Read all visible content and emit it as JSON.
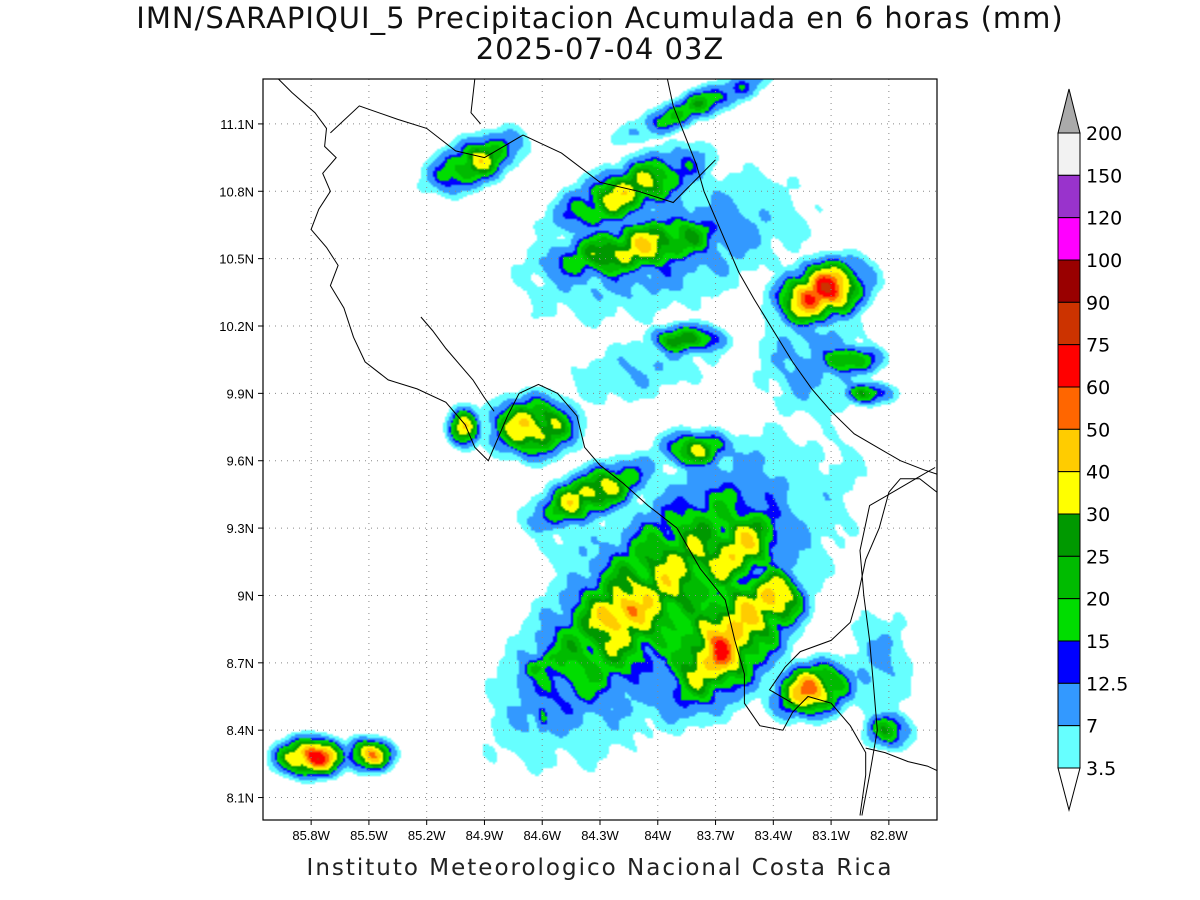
{
  "title": {
    "line1": "IMN/SARAPIQUI_5 Precipitacion Acumulada en 6 horas (mm)",
    "line2": "2025-07-04 03Z"
  },
  "footer": "Instituto Meteorologico Nacional Costa Rica",
  "map": {
    "lon_range": [
      -86.05,
      -82.55
    ],
    "lat_range": [
      8.0,
      11.3
    ],
    "lat_ticks": [
      {
        "value": 11.1,
        "label": "11.1N"
      },
      {
        "value": 10.8,
        "label": "10.8N"
      },
      {
        "value": 10.5,
        "label": "10.5N"
      },
      {
        "value": 10.2,
        "label": "10.2N"
      },
      {
        "value": 9.9,
        "label": "9.9N"
      },
      {
        "value": 9.6,
        "label": "9.6N"
      },
      {
        "value": 9.3,
        "label": "9.3N"
      },
      {
        "value": 9.0,
        "label": "9N"
      },
      {
        "value": 8.7,
        "label": "8.7N"
      },
      {
        "value": 8.4,
        "label": "8.4N"
      },
      {
        "value": 8.1,
        "label": "8.1N"
      }
    ],
    "lon_ticks": [
      {
        "value": -85.8,
        "label": "85.8W"
      },
      {
        "value": -85.5,
        "label": "85.5W"
      },
      {
        "value": -85.2,
        "label": "85.2W"
      },
      {
        "value": -84.9,
        "label": "84.9W"
      },
      {
        "value": -84.6,
        "label": "84.6W"
      },
      {
        "value": -84.3,
        "label": "84.3W"
      },
      {
        "value": -84.0,
        "label": "84W"
      },
      {
        "value": -83.7,
        "label": "83.7W"
      },
      {
        "value": -83.4,
        "label": "83.4W"
      },
      {
        "value": -83.1,
        "label": "83.1W"
      },
      {
        "value": -82.8,
        "label": "82.8W"
      }
    ],
    "grid": "dotted",
    "coastlines": [
      [
        [
          -85.97,
          11.3
        ],
        [
          -85.9,
          11.24
        ],
        [
          -85.78,
          11.15
        ],
        [
          -85.72,
          11.08
        ],
        [
          -85.73,
          11.0
        ],
        [
          -85.67,
          10.95
        ],
        [
          -85.74,
          10.88
        ],
        [
          -85.7,
          10.8
        ],
        [
          -85.76,
          10.72
        ],
        [
          -85.8,
          10.63
        ],
        [
          -85.72,
          10.55
        ],
        [
          -85.66,
          10.47
        ],
        [
          -85.7,
          10.38
        ],
        [
          -85.63,
          10.28
        ],
        [
          -85.58,
          10.15
        ],
        [
          -85.52,
          10.04
        ],
        [
          -85.4,
          9.96
        ],
        [
          -85.25,
          9.92
        ],
        [
          -85.1,
          9.86
        ],
        [
          -85.0,
          9.76
        ],
        [
          -84.95,
          9.66
        ],
        [
          -84.88,
          9.6
        ],
        [
          -84.83,
          9.7
        ],
        [
          -84.78,
          9.8
        ],
        [
          -84.72,
          9.9
        ],
        [
          -84.62,
          9.94
        ],
        [
          -84.52,
          9.9
        ],
        [
          -84.42,
          9.8
        ],
        [
          -84.38,
          9.66
        ],
        [
          -84.3,
          9.58
        ],
        [
          -84.18,
          9.5
        ],
        [
          -84.05,
          9.4
        ],
        [
          -83.9,
          9.3
        ],
        [
          -83.78,
          9.12
        ],
        [
          -83.65,
          8.98
        ],
        [
          -83.6,
          8.8
        ],
        [
          -83.55,
          8.65
        ],
        [
          -83.55,
          8.52
        ],
        [
          -83.47,
          8.42
        ],
        [
          -83.35,
          8.4
        ],
        [
          -83.3,
          8.48
        ],
        [
          -83.22,
          8.55
        ],
        [
          -83.1,
          8.52
        ],
        [
          -83.0,
          8.42
        ],
        [
          -82.92,
          8.3
        ],
        [
          -82.92,
          8.2
        ],
        [
          -82.95,
          8.02
        ]
      ],
      [
        [
          -85.23,
          10.24
        ],
        [
          -85.17,
          10.18
        ],
        [
          -85.1,
          10.1
        ],
        [
          -85.02,
          10.02
        ],
        [
          -84.96,
          9.96
        ],
        [
          -84.9,
          9.88
        ],
        [
          -84.85,
          9.82
        ]
      ],
      [
        [
          -84.95,
          11.3
        ],
        [
          -84.97,
          11.15
        ],
        [
          -84.92,
          11.1
        ]
      ],
      [
        [
          -83.95,
          11.3
        ],
        [
          -83.92,
          11.18
        ],
        [
          -83.86,
          11.05
        ],
        [
          -83.8,
          10.92
        ],
        [
          -83.76,
          10.8
        ],
        [
          -83.7,
          10.68
        ],
        [
          -83.64,
          10.56
        ],
        [
          -83.58,
          10.44
        ],
        [
          -83.5,
          10.32
        ],
        [
          -83.4,
          10.18
        ],
        [
          -83.3,
          10.04
        ],
        [
          -83.2,
          9.92
        ],
        [
          -83.1,
          9.82
        ],
        [
          -82.98,
          9.72
        ],
        [
          -82.86,
          9.66
        ],
        [
          -82.74,
          9.6
        ],
        [
          -82.62,
          9.56
        ],
        [
          -82.55,
          9.54
        ]
      ],
      [
        [
          -82.55,
          9.46
        ],
        [
          -82.64,
          9.52
        ],
        [
          -82.74,
          9.52
        ],
        [
          -82.8,
          9.46
        ],
        [
          -82.85,
          9.3
        ],
        [
          -82.92,
          9.16
        ],
        [
          -82.96,
          9.0
        ],
        [
          -83.0,
          8.88
        ],
        [
          -83.1,
          8.8
        ],
        [
          -83.26,
          8.75
        ],
        [
          -83.34,
          8.68
        ],
        [
          -83.42,
          8.58
        ],
        [
          -83.3,
          8.52
        ]
      ],
      [
        [
          -82.92,
          8.32
        ],
        [
          -82.82,
          8.3
        ],
        [
          -82.7,
          8.26
        ],
        [
          -82.6,
          8.24
        ],
        [
          -82.55,
          8.22
        ]
      ]
    ],
    "borders": [
      [
        [
          -85.7,
          11.06
        ],
        [
          -85.55,
          11.18
        ],
        [
          -85.35,
          11.12
        ],
        [
          -85.2,
          11.08
        ],
        [
          -85.05,
          10.98
        ],
        [
          -84.9,
          10.95
        ],
        [
          -84.7,
          11.05
        ],
        [
          -84.5,
          10.97
        ],
        [
          -84.3,
          10.84
        ],
        [
          -84.1,
          10.8
        ],
        [
          -83.92,
          10.75
        ],
        [
          -83.7,
          10.94
        ]
      ],
      [
        [
          -82.56,
          9.57
        ],
        [
          -82.66,
          9.52
        ],
        [
          -82.78,
          9.46
        ],
        [
          -82.9,
          9.4
        ],
        [
          -82.95,
          9.2
        ],
        [
          -82.93,
          9.0
        ],
        [
          -82.9,
          8.8
        ],
        [
          -82.88,
          8.6
        ],
        [
          -82.86,
          8.4
        ],
        [
          -82.9,
          8.2
        ],
        [
          -82.94,
          8.02
        ]
      ]
    ]
  },
  "precip_field": {
    "levels": [
      3.5,
      7,
      12.5,
      15,
      20,
      25,
      30,
      40,
      50,
      60,
      75,
      90,
      100,
      120,
      150,
      200
    ],
    "colors": [
      "#ffffff",
      "#66ffff",
      "#3399ff",
      "#0000ff",
      "#00dd00",
      "#00bb00",
      "#009900",
      "#ffff00",
      "#ffcc00",
      "#ff6600",
      "#ff0000",
      "#cc3300",
      "#990000",
      "#ff00ff",
      "#9933cc",
      "#f2f2f2",
      "#aaaaaa"
    ],
    "cells": [
      {
        "lon": -84.05,
        "lat": 9.0,
        "r": [
          0.95,
          0.35
        ],
        "rot": -40,
        "peak": 32
      },
      {
        "lon": -83.65,
        "lat": 8.8,
        "r": [
          0.45,
          0.25
        ],
        "rot": -40,
        "peak": 45
      },
      {
        "lon": -84.2,
        "lat": 8.92,
        "r": [
          0.25,
          0.15
        ],
        "rot": -20,
        "peak": 55
      },
      {
        "lon": -83.4,
        "lat": 8.98,
        "r": [
          0.18,
          0.16
        ],
        "rot": 0,
        "peak": 48
      },
      {
        "lon": -83.68,
        "lat": 8.72,
        "r": [
          0.1,
          0.14
        ],
        "rot": -30,
        "peak": 60
      },
      {
        "lon": -83.2,
        "lat": 8.58,
        "r": [
          0.22,
          0.13
        ],
        "rot": -10,
        "peak": 50
      },
      {
        "lon": -84.35,
        "lat": 9.45,
        "r": [
          0.35,
          0.12
        ],
        "rot": -20,
        "peak": 38
      },
      {
        "lon": -83.6,
        "lat": 9.2,
        "r": [
          0.35,
          0.2
        ],
        "rot": -30,
        "peak": 38
      },
      {
        "lon": -84.65,
        "lat": 9.75,
        "r": [
          0.25,
          0.15
        ],
        "rot": 0,
        "peak": 42
      },
      {
        "lon": -84.1,
        "lat": 10.55,
        "r": [
          0.55,
          0.14
        ],
        "rot": -10,
        "peak": 36
      },
      {
        "lon": -84.15,
        "lat": 10.8,
        "r": [
          0.45,
          0.14
        ],
        "rot": -20,
        "peak": 34
      },
      {
        "lon": -83.15,
        "lat": 10.35,
        "r": [
          0.25,
          0.14
        ],
        "rot": -15,
        "peak": 68
      },
      {
        "lon": -84.95,
        "lat": 10.93,
        "r": [
          0.28,
          0.12
        ],
        "rot": -20,
        "peak": 32
      },
      {
        "lon": -83.0,
        "lat": 10.05,
        "r": [
          0.18,
          0.08
        ],
        "rot": 0,
        "peak": 30
      },
      {
        "lon": -83.85,
        "lat": 10.14,
        "r": [
          0.22,
          0.08
        ],
        "rot": 0,
        "peak": 30
      },
      {
        "lon": -83.8,
        "lat": 11.18,
        "r": [
          0.45,
          0.08
        ],
        "rot": -20,
        "peak": 22
      },
      {
        "lon": -85.8,
        "lat": 8.28,
        "r": [
          0.18,
          0.09
        ],
        "rot": 0,
        "peak": 70
      },
      {
        "lon": -85.5,
        "lat": 8.29,
        "r": [
          0.14,
          0.08
        ],
        "rot": 0,
        "peak": 45
      },
      {
        "lon": -83.8,
        "lat": 9.65,
        "r": [
          0.22,
          0.1
        ],
        "rot": 0,
        "peak": 30
      },
      {
        "lon": -84.6,
        "lat": 8.7,
        "r": [
          0.2,
          0.08
        ],
        "rot": -30,
        "peak": 22
      },
      {
        "lon": -84.6,
        "lat": 8.45,
        "r": [
          0.06,
          0.1
        ],
        "rot": 0,
        "peak": 20
      },
      {
        "lon": -82.8,
        "lat": 8.4,
        "r": [
          0.15,
          0.1
        ],
        "rot": 0,
        "peak": 22
      },
      {
        "lon": -85.0,
        "lat": 9.75,
        "r": [
          0.1,
          0.1
        ],
        "rot": 0,
        "peak": 35
      },
      {
        "lon": -82.9,
        "lat": 9.9,
        "r": [
          0.15,
          0.06
        ],
        "rot": 0,
        "peak": 25
      }
    ],
    "swaths": [
      {
        "lon": -83.8,
        "lat": 8.95,
        "r": [
          1.35,
          0.45
        ],
        "rot": -38,
        "peak": 10
      },
      {
        "lon": -84.1,
        "lat": 10.0,
        "r": [
          0.6,
          0.2
        ],
        "rot": -10,
        "peak": 7
      },
      {
        "lon": -83.95,
        "lat": 10.55,
        "r": [
          0.95,
          0.35
        ],
        "rot": -15,
        "peak": 11
      },
      {
        "lon": -83.2,
        "lat": 10.05,
        "r": [
          0.4,
          0.35
        ],
        "rot": 0,
        "peak": 9
      },
      {
        "lon": -82.85,
        "lat": 8.7,
        "r": [
          0.25,
          0.35
        ],
        "rot": 0,
        "peak": 8
      },
      {
        "lon": -84.4,
        "lat": 9.2,
        "r": [
          0.35,
          0.2
        ],
        "rot": 0,
        "peak": 6
      }
    ]
  },
  "colorbar": {
    "labels": [
      "200",
      "150",
      "120",
      "100",
      "90",
      "75",
      "60",
      "50",
      "40",
      "30",
      "25",
      "20",
      "15",
      "12.5",
      "7",
      "3.5"
    ],
    "colors": [
      "#f2f2f2",
      "#9933cc",
      "#ff00ff",
      "#990000",
      "#cc3300",
      "#ff0000",
      "#ff6600",
      "#ffcc00",
      "#ffff00",
      "#009900",
      "#00bb00",
      "#00dd00",
      "#0000ff",
      "#3399ff",
      "#66ffff"
    ],
    "top_arrow_color": "#aaaaaa",
    "bottom_arrow_color": "#ffffff"
  }
}
